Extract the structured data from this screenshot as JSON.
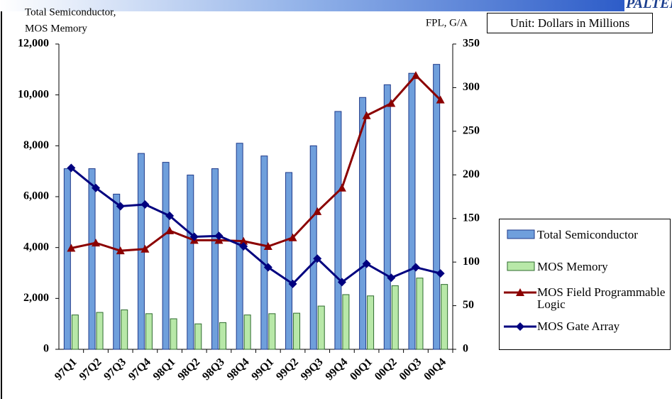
{
  "header": {
    "brand": "PALTEK CORP."
  },
  "unit": "Unit: Dollars in Millions",
  "chart_data": {
    "type": "bar_line",
    "y_label": [
      "Total Semiconductor,",
      "MOS Memory"
    ],
    "y2_label": "FPL, G/A",
    "categories": [
      "97Q1",
      "97Q2",
      "97Q3",
      "97Q4",
      "98Q1",
      "98Q2",
      "98Q3",
      "98Q4",
      "99Q1",
      "99Q2",
      "99Q3",
      "99Q4",
      "00Q1",
      "00Q2",
      "00Q3",
      "00Q4"
    ],
    "ylim": [
      0,
      12000
    ],
    "yticks": [
      0,
      {
        "value": 2000,
        "label": "2,000"
      },
      {
        "value": 4000,
        "label": "4,000"
      },
      {
        "value": 6000,
        "label": "6,000"
      },
      {
        "value": 8000,
        "label": "8,000"
      },
      {
        "value": 10000,
        "label": "10,000"
      },
      {
        "value": 12000,
        "label": "12,000"
      }
    ],
    "y2lim": [
      0,
      350
    ],
    "y2ticks": [
      0,
      50,
      100,
      150,
      200,
      250,
      300,
      350
    ],
    "series": [
      {
        "name": "Total Semiconductor",
        "kind": "bar",
        "color": "#6f9fdc",
        "values": [
          7100,
          7100,
          6100,
          7700,
          7350,
          6850,
          7100,
          8100,
          7600,
          6950,
          8000,
          9350,
          9900,
          10400,
          10850,
          11200
        ]
      },
      {
        "name": "MOS Memory",
        "kind": "bar",
        "color": "#b8e8a8",
        "values": [
          1350,
          1450,
          1550,
          1400,
          1200,
          1000,
          1050,
          1350,
          1400,
          1420,
          1700,
          2150,
          2100,
          2500,
          2800,
          2550
        ]
      },
      {
        "name": "MOS Field Programmable Logic",
        "kind": "line",
        "axis": "y2",
        "marker": "triangle",
        "color": "#8b0000",
        "values": [
          116,
          122,
          113,
          115,
          136,
          125,
          125,
          124,
          118,
          128,
          158,
          185,
          268,
          282,
          314,
          286
        ]
      },
      {
        "name": "MOS Gate Array",
        "kind": "line",
        "axis": "y2",
        "marker": "diamond",
        "color": "#00007f",
        "values": [
          208,
          185,
          164,
          166,
          153,
          129,
          130,
          118,
          94,
          75,
          104,
          77,
          98,
          82,
          94,
          87
        ]
      }
    ]
  }
}
